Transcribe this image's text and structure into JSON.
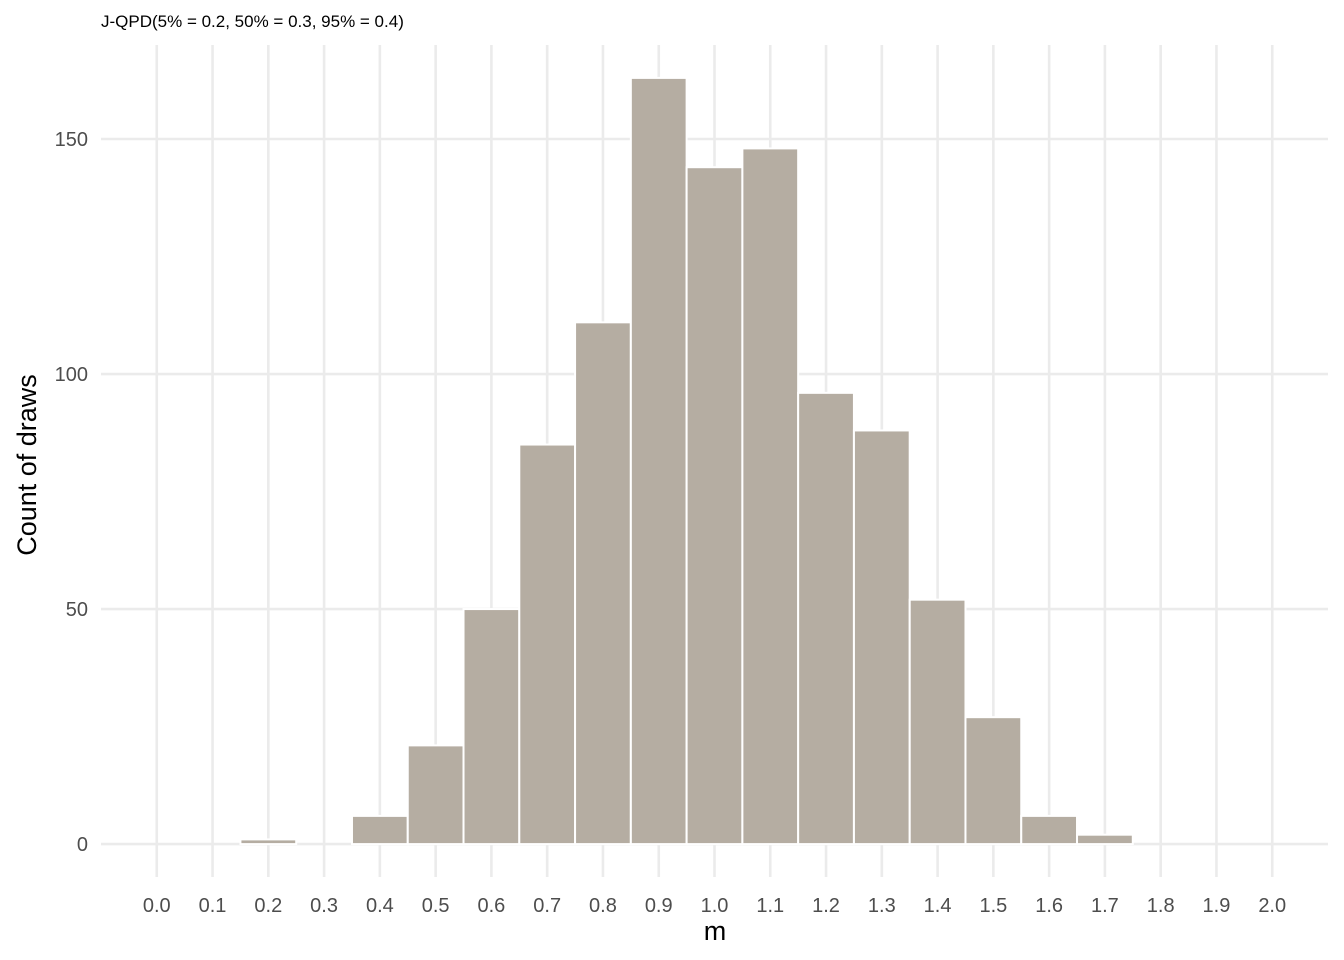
{
  "chart_data": {
    "type": "bar",
    "subtitle": "J-QPD(5% = 0.2, 50% = 0.3, 95% = 0.4)",
    "xlabel": "m",
    "ylabel": "Count of draws",
    "x_ticks": [
      "0.0",
      "0.1",
      "0.2",
      "0.3",
      "0.4",
      "0.5",
      "0.6",
      "0.7",
      "0.8",
      "0.9",
      "1.0",
      "1.1",
      "1.2",
      "1.3",
      "1.4",
      "1.5",
      "1.6",
      "1.7",
      "1.8",
      "1.9",
      "2.0"
    ],
    "y_ticks": [
      0,
      50,
      100,
      150
    ],
    "xlim": [
      -0.1,
      2.1
    ],
    "ylim": [
      -7,
      170
    ],
    "bin_width": 0.1,
    "bins": [
      {
        "center": 0.2,
        "count": 1
      },
      {
        "center": 0.3,
        "count": 0
      },
      {
        "center": 0.4,
        "count": 6
      },
      {
        "center": 0.5,
        "count": 21
      },
      {
        "center": 0.6,
        "count": 50
      },
      {
        "center": 0.7,
        "count": 85
      },
      {
        "center": 0.8,
        "count": 111
      },
      {
        "center": 0.9,
        "count": 163
      },
      {
        "center": 1.0,
        "count": 144
      },
      {
        "center": 1.1,
        "count": 148
      },
      {
        "center": 1.2,
        "count": 96
      },
      {
        "center": 1.3,
        "count": 88
      },
      {
        "center": 1.4,
        "count": 52
      },
      {
        "center": 1.5,
        "count": 27
      },
      {
        "center": 1.6,
        "count": 6
      },
      {
        "center": 1.7,
        "count": 2
      }
    ],
    "bar_color": "#b5ada2",
    "grid": true
  }
}
